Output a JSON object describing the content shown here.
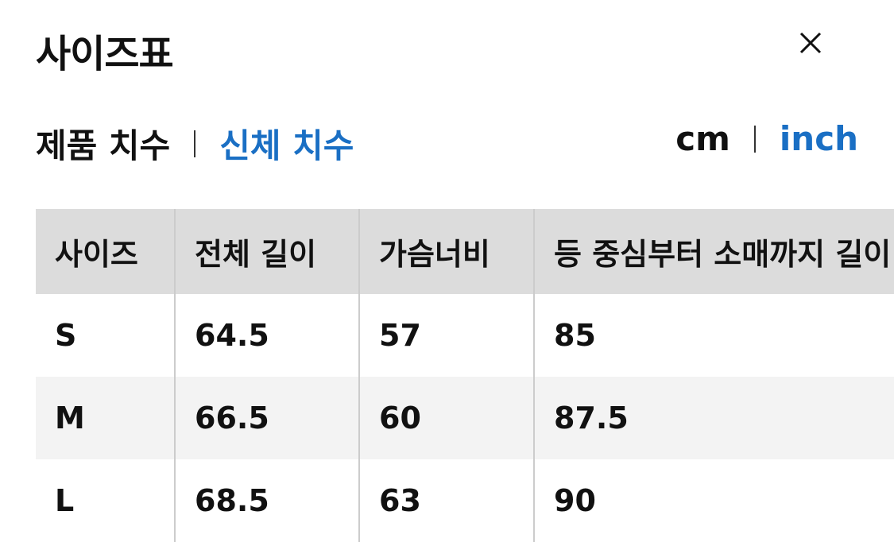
{
  "title": "사이즈표",
  "tabs": {
    "product": "제품 치수",
    "body": "신체 치수"
  },
  "units": {
    "cm": "cm",
    "inch": "inch"
  },
  "colors": {
    "accent": "#1a6fc4",
    "header_bg": "#dcdcdc"
  },
  "table": {
    "headers": [
      "사이즈",
      "전체 길이",
      "가슴너비",
      "등 중심부터 소매까지 길이"
    ],
    "rows": [
      [
        "S",
        "64.5",
        "57",
        "85"
      ],
      [
        "M",
        "66.5",
        "60",
        "87.5"
      ],
      [
        "L",
        "68.5",
        "63",
        "90"
      ]
    ]
  }
}
